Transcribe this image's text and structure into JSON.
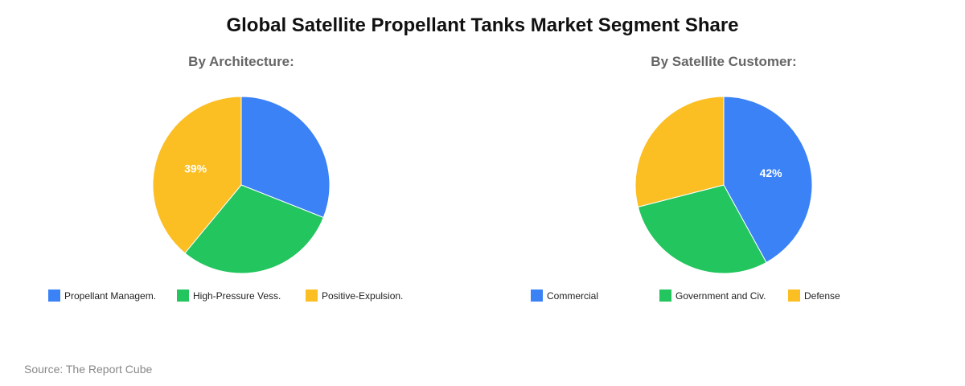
{
  "title": "Global Satellite Propellant Tanks Market Segment Share",
  "source": "Source: The Report Cube",
  "colors": {
    "blue": "#3b82f6",
    "green": "#22c55e",
    "yellow": "#fbbf24"
  },
  "chart_data": [
    {
      "type": "pie",
      "title": "By Architecture:",
      "categories": [
        "Propellant Managem.",
        "High-Pressure Vess.",
        "Positive-Expulsion."
      ],
      "values": [
        31,
        30,
        39
      ],
      "colors": [
        "#3b82f6",
        "#22c55e",
        "#fbbf24"
      ],
      "data_labels": [
        "",
        "",
        "39%"
      ],
      "legend_position": "bottom"
    },
    {
      "type": "pie",
      "title": "By Satellite Customer:",
      "categories": [
        "Commercial",
        "Government and Civ.",
        "Defense"
      ],
      "values": [
        42,
        29,
        29
      ],
      "colors": [
        "#3b82f6",
        "#22c55e",
        "#fbbf24"
      ],
      "data_labels": [
        "42%",
        "",
        ""
      ],
      "legend_position": "bottom"
    }
  ]
}
